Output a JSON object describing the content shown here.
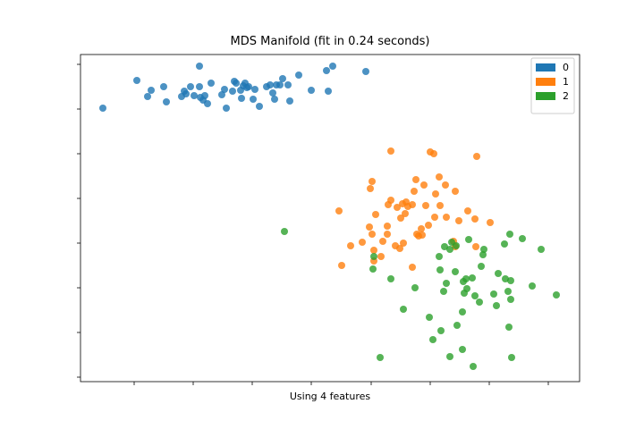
{
  "chart_data": {
    "type": "scatter",
    "title": "MDS Manifold (fit in 0.24 seconds)",
    "x_label": "Using 4 features",
    "xlim": [
      -2.79,
      2.79
    ],
    "ylim": [
      -1.83,
      1.83
    ],
    "xticks": [
      -2.19,
      -1.53,
      -0.87,
      -0.21,
      0.46,
      1.12,
      1.78,
      2.44
    ],
    "yticks": [
      1.72,
      1.22,
      0.72,
      0.22,
      -0.28,
      -0.78,
      -1.28,
      -1.78
    ],
    "legend": "upper right",
    "series": [
      {
        "name": "0",
        "color": "#1f77b4",
        "x": [
          -2.54,
          -2.16,
          -2.04,
          -2.0,
          -1.86,
          -1.83,
          -1.66,
          -1.63,
          -1.61,
          -1.56,
          -1.52,
          -1.46,
          -1.46,
          -1.45,
          -1.42,
          -1.4,
          -1.37,
          -1.33,
          -1.21,
          -1.18,
          -1.16,
          -1.09,
          -1.07,
          -1.05,
          -1.0,
          -0.99,
          -0.97,
          -0.95,
          -0.93,
          -0.91,
          -0.86,
          -0.84,
          -0.79,
          -0.71,
          -0.67,
          -0.64,
          -0.62,
          -0.6,
          -0.56,
          -0.53,
          -0.47,
          -0.45,
          -0.35,
          -0.21,
          -0.04,
          -0.02,
          0.03,
          0.4
        ],
        "y": [
          1.23,
          1.54,
          1.36,
          1.43,
          1.47,
          1.3,
          1.36,
          1.42,
          1.39,
          1.47,
          1.37,
          1.47,
          1.7,
          1.35,
          1.32,
          1.37,
          1.28,
          1.51,
          1.38,
          1.44,
          1.23,
          1.42,
          1.53,
          1.51,
          1.43,
          1.34,
          1.48,
          1.51,
          1.46,
          1.47,
          1.33,
          1.44,
          1.25,
          1.47,
          1.49,
          1.4,
          1.33,
          1.49,
          1.49,
          1.56,
          1.49,
          1.31,
          1.6,
          1.43,
          1.65,
          1.42,
          1.7,
          1.64
        ]
      },
      {
        "name": "1",
        "color": "#ff7f0e",
        "x": [
          0.1,
          0.13,
          0.23,
          0.36,
          0.44,
          0.45,
          0.47,
          0.47,
          0.49,
          0.49,
          0.51,
          0.57,
          0.59,
          0.64,
          0.64,
          0.65,
          0.68,
          0.68,
          0.73,
          0.75,
          0.78,
          0.79,
          0.81,
          0.82,
          0.84,
          0.85,
          0.87,
          0.92,
          0.92,
          0.94,
          0.96,
          0.97,
          0.99,
          1.02,
          1.03,
          1.05,
          1.07,
          1.1,
          1.12,
          1.16,
          1.17,
          1.18,
          1.22,
          1.23,
          1.29,
          1.3,
          1.38,
          1.4,
          1.4,
          1.44,
          1.54,
          1.62,
          1.63,
          1.64,
          1.79
        ],
        "y": [
          0.08,
          -0.53,
          -0.31,
          -0.27,
          -0.1,
          0.33,
          0.41,
          -0.18,
          -0.48,
          -0.36,
          0.04,
          -0.43,
          -0.26,
          -0.18,
          -0.09,
          0.15,
          0.2,
          0.75,
          -0.31,
          0.12,
          -0.34,
          0.0,
          0.16,
          -0.28,
          0.05,
          0.18,
          0.13,
          -0.55,
          0.15,
          0.3,
          0.43,
          -0.18,
          -0.2,
          -0.12,
          -0.19,
          0.37,
          0.14,
          -0.08,
          0.74,
          0.72,
          0.01,
          0.27,
          0.46,
          0.14,
          0.37,
          0.01,
          -0.26,
          0.3,
          -0.32,
          -0.03,
          0.08,
          -0.01,
          -0.32,
          0.69,
          -0.05
        ]
      },
      {
        "name": "2",
        "color": "#2ca02c",
        "x": [
          -0.51,
          0.49,
          0.48,
          0.56,
          0.68,
          0.82,
          0.95,
          1.11,
          1.15,
          1.22,
          1.23,
          1.24,
          1.27,
          1.28,
          1.3,
          1.34,
          1.34,
          1.36,
          1.4,
          1.41,
          1.42,
          1.48,
          1.48,
          1.49,
          1.5,
          1.52,
          1.53,
          1.55,
          1.59,
          1.6,
          1.62,
          1.67,
          1.69,
          1.71,
          1.72,
          1.83,
          1.86,
          1.88,
          1.95,
          1.96,
          1.99,
          2.0,
          2.01,
          2.02,
          2.02,
          2.03,
          2.15,
          2.26,
          2.36,
          2.53
        ],
        "y": [
          -0.15,
          -0.43,
          -0.57,
          -1.56,
          -0.68,
          -1.02,
          -0.78,
          -1.11,
          -1.36,
          -0.43,
          -0.58,
          -1.26,
          -0.82,
          -0.32,
          -0.73,
          -0.35,
          -1.55,
          -0.27,
          -0.6,
          -0.31,
          -1.2,
          -1.47,
          -1.05,
          -0.71,
          -0.84,
          -0.68,
          -0.79,
          -0.24,
          -0.67,
          -1.66,
          -0.87,
          -0.94,
          -0.54,
          -0.41,
          -0.35,
          -0.85,
          -0.98,
          -0.62,
          -0.29,
          -0.68,
          -0.82,
          -1.22,
          -0.18,
          -0.7,
          -0.91,
          -1.56,
          -0.23,
          -0.76,
          -0.35,
          -0.86
        ]
      }
    ]
  }
}
